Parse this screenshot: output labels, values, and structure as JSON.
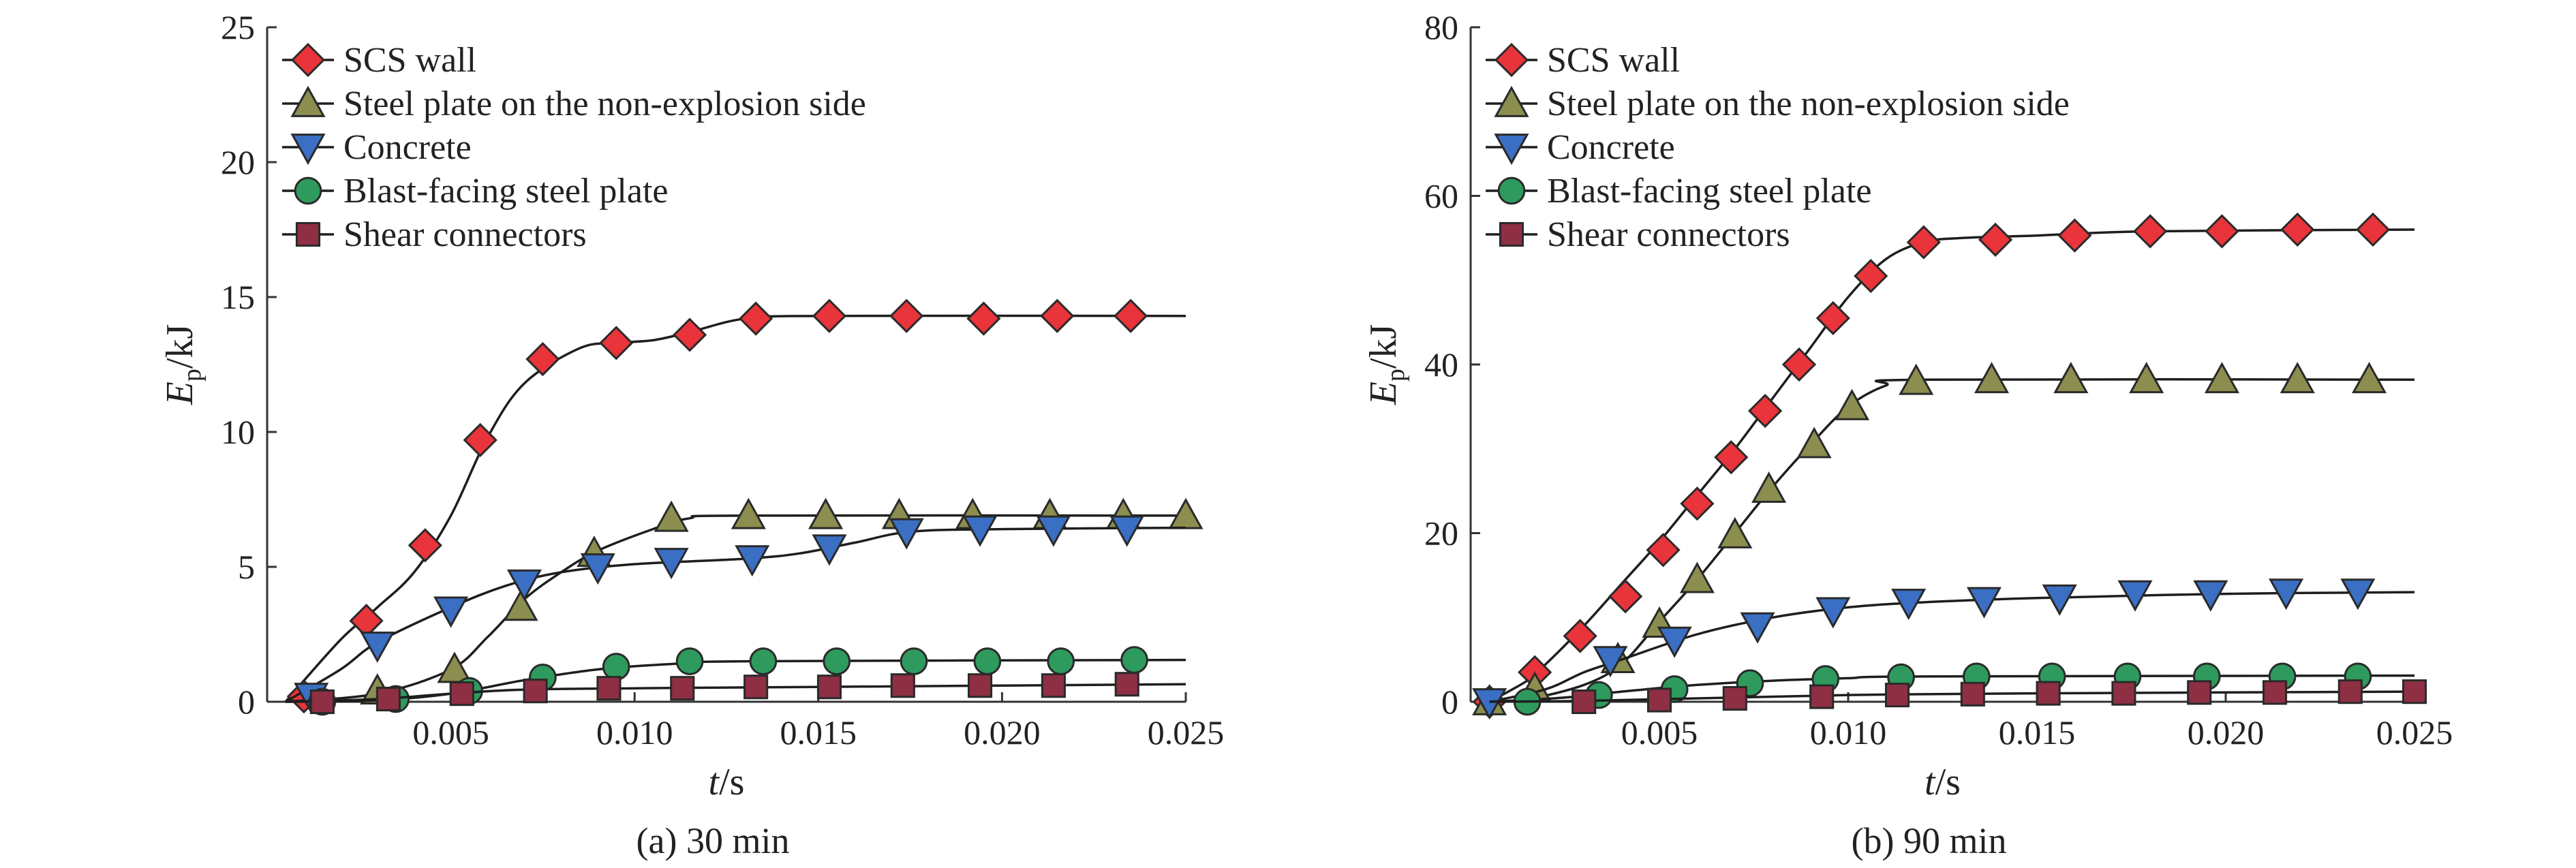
{
  "chart_data": [
    {
      "type": "line",
      "caption": "(a) 30 min",
      "xlabel": {
        "symbol": "t",
        "unit": "/s"
      },
      "ylabel": {
        "symbol": "E",
        "subscript": "p",
        "unit": "/kJ"
      },
      "xlim": [
        0,
        0.025
      ],
      "ylim": [
        0,
        25
      ],
      "xticks": [
        "0.005",
        "0.010",
        "0.015",
        "0.020",
        "0.025"
      ],
      "yticks": [
        "0",
        "5",
        "10",
        "15",
        "20",
        "25"
      ],
      "legend_position": "top-left",
      "series": [
        {
          "name": "SCS wall",
          "marker": "diamond",
          "color": "#e8343a",
          "curve": [
            [
              0.0005,
              0
            ],
            [
              0.002,
              2.3
            ],
            [
              0.003,
              3.5
            ],
            [
              0.004,
              4.8
            ],
            [
              0.005,
              6.9
            ],
            [
              0.006,
              9.8
            ],
            [
              0.007,
              11.8
            ],
            [
              0.0085,
              13.1
            ],
            [
              0.0095,
              13.3
            ],
            [
              0.0105,
              13.4
            ],
            [
              0.0115,
              13.7
            ],
            [
              0.013,
              14.2
            ],
            [
              0.015,
              14.3
            ],
            [
              0.025,
              14.3
            ]
          ],
          "markers": [
            [
              0.001,
              0.2
            ],
            [
              0.0027,
              3.0
            ],
            [
              0.0043,
              5.8
            ],
            [
              0.0058,
              9.7
            ],
            [
              0.0075,
              12.7
            ],
            [
              0.0095,
              13.3
            ],
            [
              0.0115,
              13.6
            ],
            [
              0.0133,
              14.2
            ],
            [
              0.0153,
              14.3
            ],
            [
              0.0174,
              14.3
            ],
            [
              0.0195,
              14.2
            ],
            [
              0.0215,
              14.3
            ],
            [
              0.0235,
              14.3
            ]
          ]
        },
        {
          "name": "Steel plate on the non-explosion side",
          "marker": "triangle-up",
          "color": "#8b8e4f",
          "curve": [
            [
              0.0005,
              0
            ],
            [
              0.003,
              0.3
            ],
            [
              0.005,
              1.2
            ],
            [
              0.006,
              2.4
            ],
            [
              0.007,
              3.8
            ],
            [
              0.008,
              4.8
            ],
            [
              0.009,
              5.6
            ],
            [
              0.0105,
              6.4
            ],
            [
              0.0115,
              6.8
            ],
            [
              0.013,
              6.9
            ],
            [
              0.025,
              6.9
            ]
          ],
          "markers": [
            [
              0.003,
              0.4
            ],
            [
              0.0051,
              1.2
            ],
            [
              0.0069,
              3.5
            ],
            [
              0.0089,
              5.5
            ],
            [
              0.011,
              6.8
            ],
            [
              0.0131,
              6.9
            ],
            [
              0.0152,
              6.9
            ],
            [
              0.0172,
              6.9
            ],
            [
              0.0192,
              6.9
            ],
            [
              0.0213,
              6.9
            ],
            [
              0.0233,
              6.9
            ],
            [
              0.025,
              6.9
            ]
          ]
        },
        {
          "name": "Concrete",
          "marker": "triangle-down",
          "color": "#3a6fc4",
          "curve": [
            [
              0.0005,
              0
            ],
            [
              0.002,
              1.2
            ],
            [
              0.003,
              2.2
            ],
            [
              0.005,
              3.5
            ],
            [
              0.0065,
              4.3
            ],
            [
              0.008,
              4.8
            ],
            [
              0.01,
              5.1
            ],
            [
              0.013,
              5.3
            ],
            [
              0.0145,
              5.5
            ],
            [
              0.016,
              5.9
            ],
            [
              0.0175,
              6.3
            ],
            [
              0.02,
              6.4
            ],
            [
              0.025,
              6.45
            ]
          ],
          "markers": [
            [
              0.0012,
              0.2
            ],
            [
              0.003,
              2.1
            ],
            [
              0.005,
              3.4
            ],
            [
              0.007,
              4.4
            ],
            [
              0.009,
              5.0
            ],
            [
              0.011,
              5.2
            ],
            [
              0.0132,
              5.3
            ],
            [
              0.0153,
              5.7
            ],
            [
              0.0174,
              6.3
            ],
            [
              0.0194,
              6.4
            ],
            [
              0.0214,
              6.4
            ],
            [
              0.0234,
              6.4
            ]
          ]
        },
        {
          "name": "Blast-facing steel plate",
          "marker": "circle",
          "color": "#2e9a5d",
          "curve": [
            [
              0.0005,
              0
            ],
            [
              0.003,
              0.05
            ],
            [
              0.005,
              0.3
            ],
            [
              0.007,
              0.8
            ],
            [
              0.009,
              1.2
            ],
            [
              0.011,
              1.4
            ],
            [
              0.013,
              1.5
            ],
            [
              0.025,
              1.55
            ]
          ],
          "markers": [
            [
              0.0015,
              0
            ],
            [
              0.0035,
              0.1
            ],
            [
              0.0055,
              0.4
            ],
            [
              0.0075,
              0.9
            ],
            [
              0.0095,
              1.3
            ],
            [
              0.0115,
              1.5
            ],
            [
              0.0135,
              1.5
            ],
            [
              0.0155,
              1.5
            ],
            [
              0.0176,
              1.5
            ],
            [
              0.0196,
              1.5
            ],
            [
              0.0216,
              1.5
            ],
            [
              0.0236,
              1.55
            ]
          ]
        },
        {
          "name": "Shear connectors",
          "marker": "square",
          "color": "#8e2f44",
          "curve": [
            [
              0.0005,
              0
            ],
            [
              0.003,
              0.1
            ],
            [
              0.005,
              0.3
            ],
            [
              0.007,
              0.45
            ],
            [
              0.01,
              0.5
            ],
            [
              0.015,
              0.55
            ],
            [
              0.025,
              0.65
            ]
          ],
          "markers": [
            [
              0.0015,
              0
            ],
            [
              0.0033,
              0.1
            ],
            [
              0.0053,
              0.3
            ],
            [
              0.0073,
              0.4
            ],
            [
              0.0093,
              0.5
            ],
            [
              0.0113,
              0.5
            ],
            [
              0.0133,
              0.55
            ],
            [
              0.0153,
              0.55
            ],
            [
              0.0173,
              0.6
            ],
            [
              0.0194,
              0.6
            ],
            [
              0.0214,
              0.6
            ],
            [
              0.0234,
              0.65
            ]
          ]
        }
      ]
    },
    {
      "type": "line",
      "caption": "(b) 90 min",
      "xlabel": {
        "symbol": "t",
        "unit": "/s"
      },
      "ylabel": {
        "symbol": "E",
        "subscript": "p",
        "unit": "/kJ"
      },
      "xlim": [
        0,
        0.025
      ],
      "ylim": [
        0,
        80
      ],
      "xticks": [
        "0.005",
        "0.010",
        "0.015",
        "0.020",
        "0.025"
      ],
      "yticks": [
        "0",
        "20",
        "40",
        "60",
        "80"
      ],
      "legend_position": "top-left",
      "series": [
        {
          "name": "SCS wall",
          "marker": "diamond",
          "color": "#e8343a",
          "curve": [
            [
              0.0005,
              0
            ],
            [
              0.0015,
              2.5
            ],
            [
              0.002,
              4.5
            ],
            [
              0.003,
              9
            ],
            [
              0.004,
              14
            ],
            [
              0.005,
              19
            ],
            [
              0.006,
              24.5
            ],
            [
              0.007,
              30
            ],
            [
              0.008,
              36
            ],
            [
              0.009,
              42
            ],
            [
              0.01,
              48
            ],
            [
              0.011,
              52.5
            ],
            [
              0.012,
              54.5
            ],
            [
              0.013,
              55
            ],
            [
              0.015,
              55.3
            ],
            [
              0.018,
              55.8
            ],
            [
              0.025,
              56
            ]
          ],
          "markers": [
            [
              0.0005,
              0
            ],
            [
              0.0017,
              3.5
            ],
            [
              0.0029,
              7.8
            ],
            [
              0.0041,
              12.5
            ],
            [
              0.0051,
              18
            ],
            [
              0.006,
              23.5
            ],
            [
              0.0069,
              29
            ],
            [
              0.0078,
              34.5
            ],
            [
              0.0087,
              40
            ],
            [
              0.0096,
              45.5
            ],
            [
              0.0106,
              50.5
            ],
            [
              0.012,
              54.5
            ],
            [
              0.0139,
              54.8
            ],
            [
              0.016,
              55.3
            ],
            [
              0.018,
              55.8
            ],
            [
              0.0199,
              55.8
            ],
            [
              0.0219,
              56
            ],
            [
              0.0239,
              56
            ]
          ]
        },
        {
          "name": "Steel plate on the non-explosion side",
          "marker": "triangle-up",
          "color": "#8b8e4f",
          "curve": [
            [
              0.0005,
              0
            ],
            [
              0.0015,
              0.3
            ],
            [
              0.003,
              2
            ],
            [
              0.004,
              4.5
            ],
            [
              0.005,
              9.5
            ],
            [
              0.006,
              14.5
            ],
            [
              0.007,
              20
            ],
            [
              0.008,
              25.5
            ],
            [
              0.009,
              30.5
            ],
            [
              0.01,
              35
            ],
            [
              0.011,
              37.5
            ],
            [
              0.012,
              38.2
            ],
            [
              0.025,
              38.2
            ]
          ],
          "markers": [
            [
              0.0005,
              0
            ],
            [
              0.0017,
              1.5
            ],
            [
              0.0039,
              5
            ],
            [
              0.005,
              9.2
            ],
            [
              0.006,
              14.5
            ],
            [
              0.007,
              19.8
            ],
            [
              0.0079,
              25.2
            ],
            [
              0.0091,
              30.5
            ],
            [
              0.0101,
              35
            ],
            [
              0.0118,
              38
            ],
            [
              0.0138,
              38.2
            ],
            [
              0.0159,
              38.2
            ],
            [
              0.0179,
              38.2
            ],
            [
              0.0199,
              38.2
            ],
            [
              0.0219,
              38.2
            ],
            [
              0.0238,
              38.2
            ]
          ]
        },
        {
          "name": "Concrete",
          "marker": "triangle-down",
          "color": "#3a6fc4",
          "curve": [
            [
              0.0005,
              0
            ],
            [
              0.002,
              1.5
            ],
            [
              0.003,
              3.5
            ],
            [
              0.004,
              5
            ],
            [
              0.006,
              8
            ],
            [
              0.008,
              10
            ],
            [
              0.01,
              11.2
            ],
            [
              0.012,
              11.8
            ],
            [
              0.015,
              12.3
            ],
            [
              0.02,
              12.8
            ],
            [
              0.025,
              13
            ]
          ],
          "markers": [
            [
              0.0005,
              0
            ],
            [
              0.0037,
              5
            ],
            [
              0.0054,
              7.3
            ],
            [
              0.0076,
              9
            ],
            [
              0.0096,
              10.8
            ],
            [
              0.0116,
              11.8
            ],
            [
              0.0136,
              12
            ],
            [
              0.0156,
              12.3
            ],
            [
              0.0176,
              12.8
            ],
            [
              0.0196,
              12.8
            ],
            [
              0.0216,
              13
            ],
            [
              0.0235,
              13
            ]
          ]
        },
        {
          "name": "Blast-facing steel plate",
          "marker": "circle",
          "color": "#2e9a5d",
          "curve": [
            [
              0.0005,
              0
            ],
            [
              0.0025,
              0.5
            ],
            [
              0.004,
              1.2
            ],
            [
              0.006,
              2
            ],
            [
              0.008,
              2.5
            ],
            [
              0.01,
              2.8
            ],
            [
              0.012,
              3
            ],
            [
              0.025,
              3.1
            ]
          ],
          "markers": [
            [
              0.0015,
              0
            ],
            [
              0.0034,
              0.8
            ],
            [
              0.0054,
              1.5
            ],
            [
              0.0074,
              2.2
            ],
            [
              0.0094,
              2.7
            ],
            [
              0.0114,
              2.9
            ],
            [
              0.0134,
              3
            ],
            [
              0.0154,
              3
            ],
            [
              0.0174,
              3
            ],
            [
              0.0195,
              3
            ],
            [
              0.0215,
              3
            ],
            [
              0.0235,
              3
            ]
          ]
        },
        {
          "name": "Shear connectors",
          "marker": "square",
          "color": "#8e2f44",
          "curve": [
            [
              0.0005,
              0
            ],
            [
              0.003,
              0.1
            ],
            [
              0.006,
              0.4
            ],
            [
              0.01,
              0.8
            ],
            [
              0.015,
              1
            ],
            [
              0.025,
              1.2
            ]
          ],
          "markers": [
            [
              0.003,
              0
            ],
            [
              0.005,
              0.2
            ],
            [
              0.007,
              0.4
            ],
            [
              0.0093,
              0.6
            ],
            [
              0.0113,
              0.8
            ],
            [
              0.0133,
              0.9
            ],
            [
              0.0153,
              1
            ],
            [
              0.0173,
              1
            ],
            [
              0.0193,
              1.1
            ],
            [
              0.0213,
              1.1
            ],
            [
              0.0233,
              1.2
            ],
            [
              0.025,
              1.2
            ]
          ]
        }
      ]
    }
  ]
}
